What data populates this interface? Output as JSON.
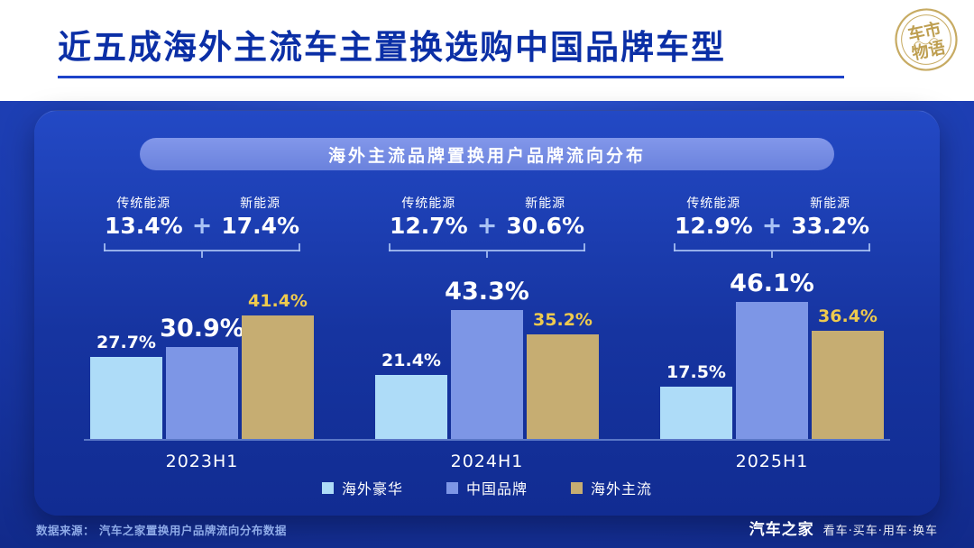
{
  "header": {
    "title": "近五成海外主流车主置换选购中国品牌车型",
    "seal": {
      "line1": "车市",
      "line2": "物语"
    }
  },
  "panel": {
    "pill_title": "海外主流品牌置换用户品牌流向分布"
  },
  "chart_data": {
    "type": "bar",
    "title": "海外主流品牌置换用户品牌流向分布",
    "categories": [
      "2023H1",
      "2024H1",
      "2025H1"
    ],
    "series": [
      {
        "name": "海外豪华",
        "color": "#aedcf8",
        "label_color": "#ffffff",
        "values": [
          27.7,
          21.4,
          17.5
        ]
      },
      {
        "name": "中国品牌",
        "color": "#7d96e6",
        "label_color": "#ffffff",
        "values": [
          30.9,
          43.3,
          46.1
        ]
      },
      {
        "name": "海外主流",
        "color": "#c6ad72",
        "label_color": "#eeca4e",
        "values": [
          41.4,
          35.2,
          36.4
        ]
      }
    ],
    "annotations": [
      {
        "traditional_label": "传统能源",
        "new_energy_label": "新能源",
        "traditional_value": "13.4%",
        "new_energy_value": "17.4%"
      },
      {
        "traditional_label": "传统能源",
        "new_energy_label": "新能源",
        "traditional_value": "12.7%",
        "new_energy_value": "30.6%"
      },
      {
        "traditional_label": "传统能源",
        "new_energy_label": "新能源",
        "traditional_value": "12.9%",
        "new_energy_value": "33.2%"
      }
    ],
    "legend_position": "bottom",
    "value_suffix": "%"
  },
  "footer": {
    "source": "数据来源： 汽车之家置换用户品牌流向分布数据",
    "brand": "汽车之家",
    "tagline": "看车·买车·用车·换车"
  },
  "colors": {
    "accent_gold": "#eeca4e",
    "panel_blue": "#1a3cae",
    "pill_blue": "#7289e2",
    "title_blue": "#0b2fa6"
  }
}
